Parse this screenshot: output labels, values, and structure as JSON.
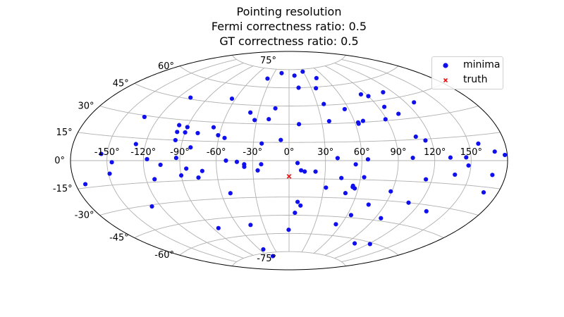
{
  "title_lines": [
    "Pointing resolution",
    "Fermi correctness ratio: 0.5",
    "GT correctness ratio: 0.5"
  ],
  "colors": {
    "minima": "#1010ee",
    "truth": "#ee1010",
    "grid": "#b0b0b0",
    "frame": "#000000"
  },
  "chart_data": {
    "type": "scatter",
    "projection": "aitoff",
    "title": "Pointing resolution\nFermi correctness ratio: 0.5\nGT correctness ratio: 0.5",
    "grid": true,
    "legend_position": "top-right",
    "xlim": [
      -180,
      180
    ],
    "ylim": [
      -90,
      90
    ],
    "xticks": [
      -150,
      -120,
      -90,
      -60,
      -30,
      0,
      30,
      60,
      90,
      120,
      150
    ],
    "yticks": [
      -75,
      -60,
      -45,
      -30,
      -15,
      0,
      15,
      30,
      45,
      60,
      75
    ],
    "xtick_labels": [
      "-150°",
      "-120°",
      "-90°",
      "-60°",
      "-30°",
      "0°",
      "30°",
      "60°",
      "90°",
      "120°",
      "150°"
    ],
    "ytick_labels": [
      "-75°",
      "-60°",
      "-45°",
      "-30°",
      "-15°",
      "0°",
      "15°",
      "30°",
      "45°",
      "60°",
      "75°"
    ],
    "series": [
      {
        "name": "minima",
        "marker": "circle",
        "points": [
          [
            -36,
            67
          ],
          [
            -15,
            72
          ],
          [
            10,
            70
          ],
          [
            29,
            73
          ],
          [
            46,
            67
          ],
          [
            13,
            60
          ],
          [
            36,
            59
          ],
          [
            -108,
            46
          ],
          [
            -64,
            49
          ],
          [
            -14,
            43
          ],
          [
            37,
            46
          ],
          [
            -38,
            39
          ],
          [
            -90,
            25
          ],
          [
            -67,
            26
          ],
          [
            -19,
            34
          ],
          [
            -32,
            33
          ],
          [
            9,
            30
          ],
          [
            37,
            32
          ],
          [
            56,
            41
          ],
          [
            68,
            31
          ],
          [
            84,
            51
          ],
          [
            89,
            31
          ],
          [
            90,
            49
          ],
          [
            96,
            40
          ],
          [
            104,
            34
          ],
          [
            110,
            50
          ],
          [
            128,
            40
          ],
          [
            -133,
            29
          ],
          [
            -98,
            26
          ],
          [
            -97,
            21
          ],
          [
            -90,
            21
          ],
          [
            -79,
            21
          ],
          [
            -61,
            20
          ],
          [
            -55,
            18
          ],
          [
            -23,
            14
          ],
          [
            -7,
            17
          ],
          [
            63,
            30
          ],
          [
            63,
            29
          ],
          [
            108,
            17
          ],
          [
            115,
            14
          ],
          [
            158,
            10
          ],
          [
            -96,
            15
          ],
          [
            -82,
            10
          ],
          [
            -128,
            11
          ],
          [
            -155,
            4
          ],
          [
            -93,
            2
          ],
          [
            -117,
            1
          ],
          [
            -23,
            -3
          ],
          [
            -37,
            -3
          ],
          [
            -43,
            -1
          ],
          [
            -52,
            0
          ],
          [
            -85,
            -6
          ],
          [
            -106,
            -3
          ],
          [
            -146,
            -1
          ],
          [
            -149,
            -8
          ],
          [
            -172,
            -13
          ],
          [
            -72,
            -8
          ],
          [
            -90,
            -11
          ],
          [
            -26,
            -8
          ],
          [
            -37,
            -5
          ],
          [
            7,
            -2
          ],
          [
            10,
            -8
          ],
          [
            13,
            -9
          ],
          [
            22,
            -9
          ],
          [
            40,
            2
          ],
          [
            55,
            -3
          ],
          [
            65,
            1
          ],
          [
            102,
            2
          ],
          [
            133,
            2
          ],
          [
            146,
            2
          ],
          [
            138,
            -9
          ],
          [
            169,
            -8
          ],
          [
            115,
            -13
          ],
          [
            -113,
            -13
          ],
          [
            -76,
            -13
          ],
          [
            32,
            -22
          ],
          [
            44,
            -14
          ],
          [
            55,
            -20
          ],
          [
            55,
            -21
          ],
          [
            57,
            -22
          ],
          [
            50,
            -26
          ],
          [
            63,
            -13
          ],
          [
            75,
            -34
          ],
          [
            89,
            -23
          ],
          [
            110,
            -30
          ],
          [
            -52,
            -26
          ],
          [
            8,
            -34
          ],
          [
            11,
            -37
          ],
          [
            6,
            -43
          ],
          [
            64,
            -43
          ],
          [
            96,
            -43
          ],
          [
            132,
            -34
          ],
          [
            148,
            -3
          ],
          [
            170,
            5
          ],
          [
            178,
            3
          ],
          [
            168,
            -18
          ],
          [
            -128,
            -31
          ],
          [
            -45,
            -52
          ],
          [
            -84,
            -52
          ],
          [
            -0.5,
            -57
          ],
          [
            -47,
            -78
          ],
          [
            -53,
            -72
          ],
          [
            54,
            -51
          ],
          [
            102,
            -63
          ],
          [
            122,
            -61
          ]
        ]
      },
      {
        "name": "truth",
        "marker": "x",
        "points": [
          [
            0,
            -13
          ]
        ]
      }
    ]
  }
}
